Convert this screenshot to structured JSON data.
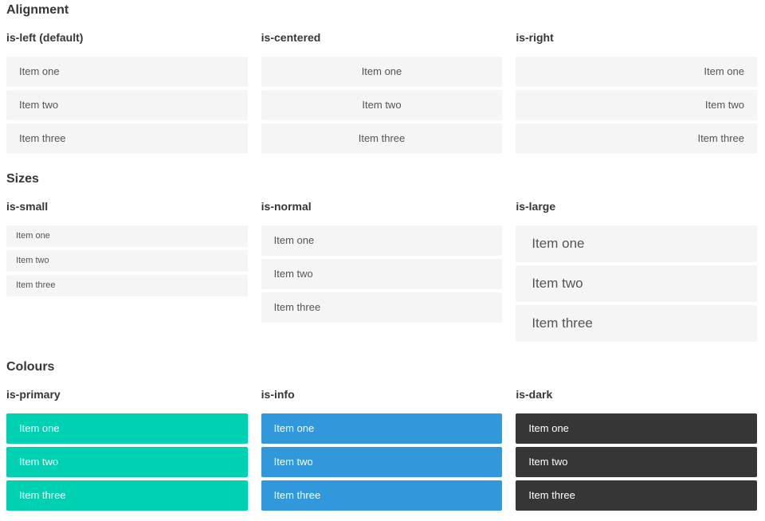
{
  "colors": {
    "primary": "#00d1b2",
    "info": "#3298dc",
    "dark": "#363636",
    "item-bg": "#f5f5f5",
    "item-text": "#555555",
    "item-text-on-color": "#ffffff",
    "heading": "#363636"
  },
  "sections": [
    {
      "title": "Alignment",
      "columns": [
        {
          "header": "is-left (default)",
          "items": [
            "Item one",
            "Item two",
            "Item three"
          ]
        },
        {
          "header": "is-centered",
          "items": [
            "Item one",
            "Item two",
            "Item three"
          ]
        },
        {
          "header": "is-right",
          "items": [
            "Item one",
            "Item two",
            "Item three"
          ]
        }
      ]
    },
    {
      "title": "Sizes",
      "columns": [
        {
          "header": "is-small",
          "items": [
            "Item one",
            "Item two",
            "Item three"
          ]
        },
        {
          "header": "is-normal",
          "items": [
            "Item one",
            "Item two",
            "Item three"
          ]
        },
        {
          "header": "is-large",
          "items": [
            "Item one",
            "Item two",
            "Item three"
          ]
        }
      ]
    },
    {
      "title": "Colours",
      "columns": [
        {
          "header": "is-primary",
          "items": [
            "Item one",
            "Item two",
            "Item three"
          ]
        },
        {
          "header": "is-info",
          "items": [
            "Item one",
            "Item two",
            "Item three"
          ]
        },
        {
          "header": "is-dark",
          "items": [
            "Item one",
            "Item two",
            "Item three"
          ]
        }
      ]
    }
  ]
}
